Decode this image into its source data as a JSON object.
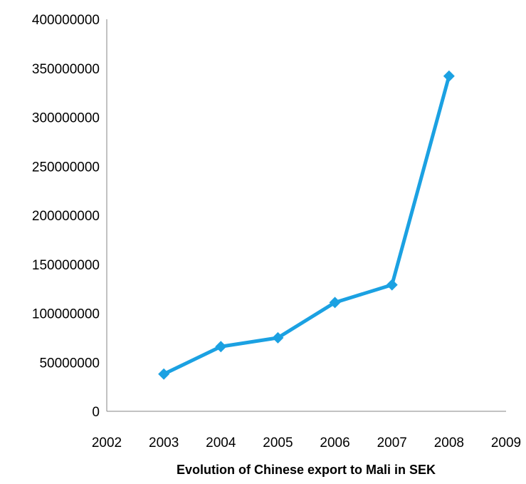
{
  "chart_data": {
    "type": "line",
    "title": "",
    "xlabel": "Evolution of Chinese export to Mali in SEK",
    "ylabel": "",
    "x": [
      2003,
      2004,
      2005,
      2006,
      2007,
      2008
    ],
    "series": [
      {
        "values": [
          38000000,
          66000000,
          75000000,
          111000000,
          129000000,
          342000000
        ],
        "color": "#1ba1e2",
        "marker": "diamond"
      }
    ],
    "xlim": [
      2002,
      2009
    ],
    "x_ticks": [
      "2002",
      "2003",
      "2004",
      "2005",
      "2006",
      "2007",
      "2008",
      "2009"
    ],
    "ylim": [
      0,
      400000000
    ],
    "y_ticks": [
      "0",
      "50000000",
      "100000000",
      "150000000",
      "200000000",
      "250000000",
      "300000000",
      "350000000",
      "400000000"
    ],
    "grid": false,
    "legend": "none",
    "axis_color": "#868686"
  }
}
